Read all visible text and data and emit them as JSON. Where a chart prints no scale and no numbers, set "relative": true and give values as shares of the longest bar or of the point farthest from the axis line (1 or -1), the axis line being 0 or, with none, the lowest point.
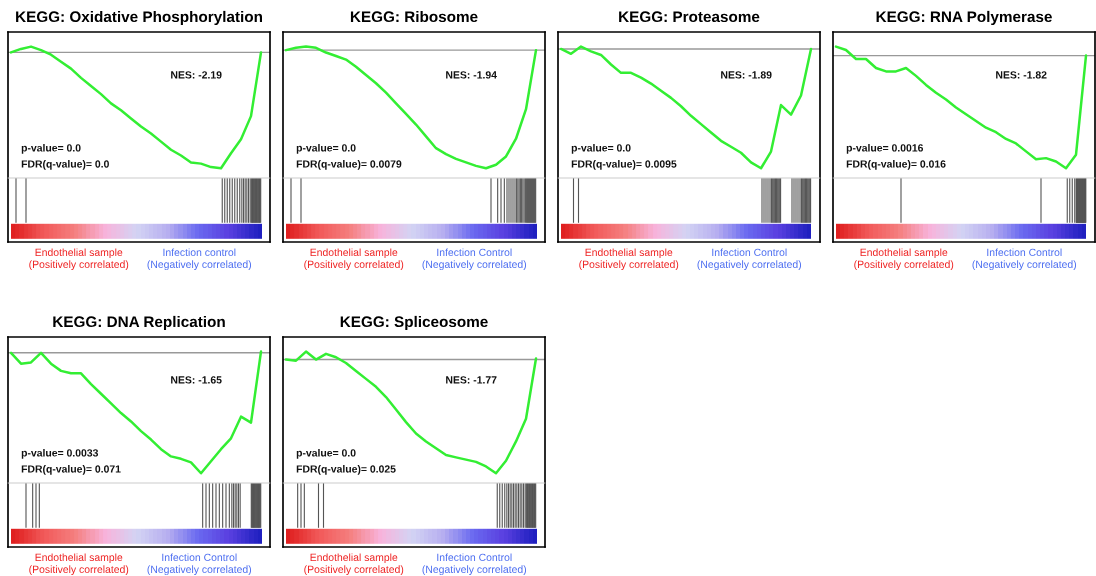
{
  "chart_data": [
    {
      "type": "line",
      "title": "KEGG: Oxidative Phosphorylation",
      "relative": true,
      "categories": [
        null,
        null,
        null,
        null,
        null,
        null,
        null,
        null,
        null,
        null,
        null,
        null,
        null,
        null,
        null,
        null,
        null,
        null,
        null,
        null,
        null,
        null,
        null,
        null,
        null,
        null
      ],
      "series": [
        {
          "color": "#33ee33",
          "values": [
            0,
            0.03,
            0.05,
            0.02,
            -0.02,
            -0.08,
            -0.14,
            -0.22,
            -0.29,
            -0.36,
            -0.44,
            -0.5,
            -0.57,
            -0.64,
            -0.7,
            -0.77,
            -0.84,
            -0.89,
            -0.95,
            -0.96,
            -0.99,
            -1,
            -0.87,
            -0.75,
            -0.55,
            0
          ]
        }
      ],
      "annotations": [
        "NES: -2.19",
        "p-value= 0.0",
        "FDR(q-value)= 0.0",
        "Endothelial sample\n(Positively correlated)",
        "Infection control\n(Negatively correlated)"
      ]
    },
    {
      "type": "line",
      "title": "KEGG: Ribosome",
      "relative": true,
      "categories": [
        null,
        null,
        null,
        null,
        null,
        null,
        null,
        null,
        null,
        null,
        null,
        null,
        null,
        null,
        null,
        null,
        null,
        null,
        null,
        null,
        null,
        null,
        null,
        null,
        null,
        null
      ],
      "series": [
        {
          "color": "#33ee33",
          "values": [
            0,
            0.02,
            0.03,
            0.02,
            -0.02,
            -0.05,
            -0.08,
            -0.14,
            -0.21,
            -0.28,
            -0.36,
            -0.45,
            -0.54,
            -0.63,
            -0.73,
            -0.83,
            -0.88,
            -0.92,
            -0.95,
            -0.98,
            -1,
            -0.97,
            -0.9,
            -0.75,
            -0.5,
            0
          ]
        }
      ],
      "annotations": [
        "NES: -1.94",
        "p-value= 0.0",
        "FDR(q-value)= 0.0079",
        "Endothelial sample\n(Positively correlated)",
        "Infection Control\n(Negatively correlated)"
      ]
    },
    {
      "type": "line",
      "title": "KEGG: Proteasome",
      "relative": true,
      "categories": [
        null,
        null,
        null,
        null,
        null,
        null,
        null,
        null,
        null,
        null,
        null,
        null,
        null,
        null,
        null,
        null,
        null,
        null,
        null,
        null,
        null,
        null,
        null,
        null,
        null,
        null
      ],
      "series": [
        {
          "color": "#33ee33",
          "values": [
            0,
            -0.04,
            0.02,
            -0.02,
            -0.05,
            -0.13,
            -0.2,
            -0.2,
            -0.24,
            -0.29,
            -0.35,
            -0.41,
            -0.48,
            -0.56,
            -0.63,
            -0.7,
            -0.77,
            -0.82,
            -0.87,
            -0.95,
            -1,
            -0.86,
            -0.47,
            -0.55,
            -0.39,
            0
          ]
        }
      ],
      "annotations": [
        "NES: -1.89",
        "p-value= 0.0",
        "FDR(q-value)= 0.0095",
        "Endothelial sample\n(Positively correlated)",
        "Infection Control\n(Negatively correlated)"
      ]
    },
    {
      "type": "line",
      "title": "KEGG: RNA Polymerase",
      "relative": true,
      "categories": [
        null,
        null,
        null,
        null,
        null,
        null,
        null,
        null,
        null,
        null,
        null,
        null,
        null,
        null,
        null,
        null,
        null,
        null,
        null,
        null,
        null,
        null,
        null,
        null,
        null,
        null
      ],
      "series": [
        {
          "color": "#33ee33",
          "values": [
            0.08,
            0.05,
            -0.03,
            -0.03,
            -0.11,
            -0.14,
            -0.14,
            -0.11,
            -0.18,
            -0.26,
            -0.33,
            -0.39,
            -0.46,
            -0.52,
            -0.58,
            -0.64,
            -0.68,
            -0.74,
            -0.78,
            -0.85,
            -0.92,
            -0.91,
            -0.94,
            -1,
            -0.88,
            0
          ]
        }
      ],
      "annotations": [
        "NES: -1.82",
        "p-value= 0.0016",
        "FDR(q-value)= 0.016",
        "Endothelial sample\n(Positively correlated)",
        "Infection Control\n(Negatively correlated)"
      ]
    },
    {
      "type": "line",
      "title": "KEGG: DNA Replication",
      "relative": true,
      "categories": [
        null,
        null,
        null,
        null,
        null,
        null,
        null,
        null,
        null,
        null,
        null,
        null,
        null,
        null,
        null,
        null,
        null,
        null,
        null,
        null,
        null,
        null,
        null,
        null,
        null,
        null
      ],
      "series": [
        {
          "color": "#33ee33",
          "values": [
            0,
            -0.09,
            -0.08,
            0,
            -0.09,
            -0.15,
            -0.17,
            -0.17,
            -0.26,
            -0.34,
            -0.42,
            -0.5,
            -0.57,
            -0.65,
            -0.72,
            -0.8,
            -0.86,
            -0.88,
            -0.91,
            -1,
            -0.9,
            -0.8,
            -0.71,
            -0.53,
            -0.58,
            0.01
          ]
        }
      ],
      "annotations": [
        "NES: -1.65",
        "p-value= 0.0033",
        "FDR(q-value)= 0.071",
        "Endothelial sample\n(Positively correlated)",
        "Infection Control\n(Negatively correlated)"
      ]
    },
    {
      "type": "line",
      "title": "KEGG: Spliceosome",
      "relative": true,
      "categories": [
        null,
        null,
        null,
        null,
        null,
        null,
        null,
        null,
        null,
        null,
        null,
        null,
        null,
        null,
        null,
        null,
        null,
        null,
        null,
        null,
        null,
        null,
        null,
        null,
        null,
        null
      ],
      "series": [
        {
          "color": "#33ee33",
          "values": [
            0,
            -0.01,
            0.07,
            0,
            0.05,
            0.02,
            -0.03,
            -0.1,
            -0.17,
            -0.24,
            -0.33,
            -0.44,
            -0.55,
            -0.65,
            -0.72,
            -0.78,
            -0.84,
            -0.86,
            -0.88,
            -0.9,
            -0.94,
            -1,
            -0.89,
            -0.72,
            -0.52,
            0.01
          ]
        }
      ],
      "annotations": [
        "NES: -1.77",
        "p-value= 0.0",
        "FDR(q-value)= 0.025",
        "Endothelial sample\n(Positively correlated)",
        "Infection Control\n(Negatively correlated)"
      ]
    }
  ]
}
